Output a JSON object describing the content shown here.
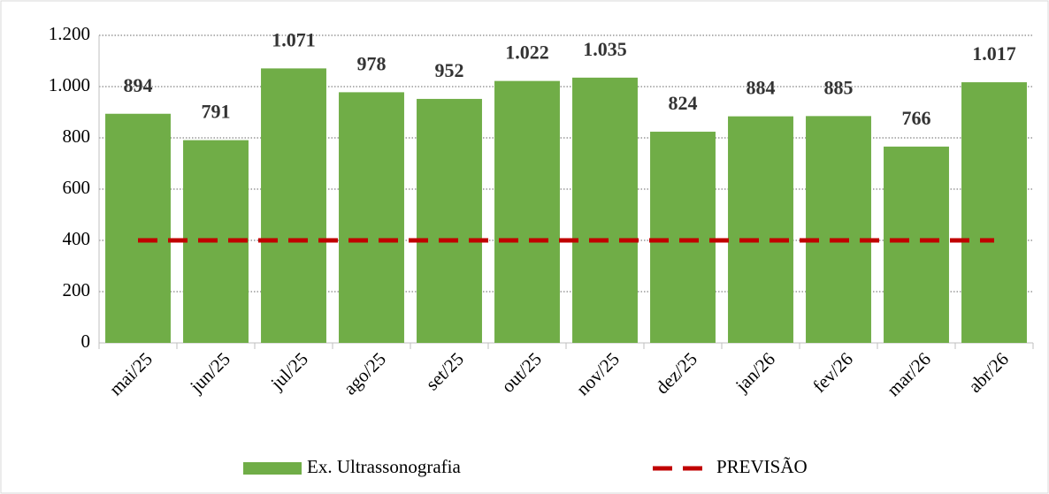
{
  "chart_data": {
    "type": "bar",
    "categories": [
      "mai/25",
      "jun/25",
      "jul/25",
      "ago/25",
      "set/25",
      "out/25",
      "nov/25",
      "dez/25",
      "jan/26",
      "fev/26",
      "mar/26",
      "abr/26"
    ],
    "series": [
      {
        "name": "Ex. Ultrassonografia",
        "type": "bar",
        "color": "#70ad47",
        "values": [
          894,
          791,
          1071,
          978,
          952,
          1022,
          1035,
          824,
          884,
          885,
          766,
          1017
        ],
        "value_labels": [
          "894",
          "791",
          "1.071",
          "978",
          "952",
          "1.022",
          "1.035",
          "824",
          "884",
          "885",
          "766",
          "1.017"
        ]
      },
      {
        "name": "PREVISÃO",
        "type": "line",
        "dashed": true,
        "color": "#c00000",
        "values": [
          400,
          400,
          400,
          400,
          400,
          400,
          400,
          400,
          400,
          400,
          400,
          400
        ]
      }
    ],
    "ylim": [
      0,
      1200
    ],
    "yticks": [
      0,
      200,
      400,
      600,
      800,
      {
        "value": 1000,
        "label": "1.000"
      },
      {
        "value": 1200,
        "label": "1.200"
      }
    ],
    "grid": true,
    "legend": "bottom"
  }
}
